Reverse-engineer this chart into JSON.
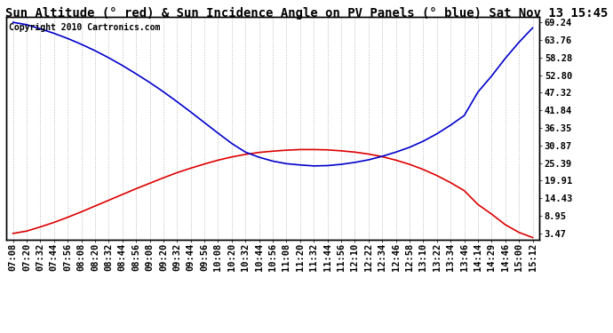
{
  "title": "Sun Altitude (° red) & Sun Incidence Angle on PV Panels (° blue) Sat Nov 13 15:45",
  "copyright": "Copyright 2010 Cartronics.com",
  "background_color": "#ffffff",
  "plot_bg_color": "#ffffff",
  "yticks": [
    3.47,
    8.95,
    14.43,
    19.91,
    25.39,
    30.87,
    36.35,
    41.84,
    47.32,
    52.8,
    58.28,
    63.76,
    69.24
  ],
  "ylim": [
    1.5,
    71.0
  ],
  "time_labels": [
    "07:08",
    "07:20",
    "07:32",
    "07:44",
    "07:56",
    "08:08",
    "08:20",
    "08:32",
    "08:44",
    "08:56",
    "09:08",
    "09:20",
    "09:32",
    "09:44",
    "09:56",
    "10:08",
    "10:20",
    "10:32",
    "10:44",
    "10:56",
    "11:08",
    "11:20",
    "11:32",
    "11:44",
    "11:56",
    "12:10",
    "12:22",
    "12:34",
    "12:46",
    "12:58",
    "13:10",
    "13:22",
    "13:34",
    "13:46",
    "14:14",
    "14:29",
    "14:46",
    "15:00",
    "15:12"
  ],
  "red_curve": [
    3.47,
    4.2,
    5.5,
    6.9,
    8.5,
    10.2,
    12.0,
    13.8,
    15.6,
    17.4,
    19.1,
    20.8,
    22.4,
    23.8,
    25.1,
    26.3,
    27.3,
    28.1,
    28.7,
    29.1,
    29.4,
    29.6,
    29.6,
    29.5,
    29.2,
    28.8,
    28.2,
    27.4,
    26.3,
    25.0,
    23.4,
    21.5,
    19.3,
    16.8,
    12.5,
    9.5,
    6.2,
    3.8,
    2.2
  ],
  "blue_curve": [
    69.24,
    68.5,
    67.2,
    65.8,
    64.2,
    62.4,
    60.4,
    58.2,
    55.8,
    53.2,
    50.5,
    47.6,
    44.5,
    41.3,
    38.0,
    34.7,
    31.5,
    28.8,
    27.2,
    26.0,
    25.2,
    24.8,
    24.5,
    24.6,
    25.0,
    25.6,
    26.4,
    27.5,
    28.8,
    30.3,
    32.2,
    34.5,
    37.2,
    40.2,
    47.5,
    52.5,
    58.0,
    63.0,
    67.5
  ],
  "line_color_red": "#dd0000",
  "line_color_blue": "#0000cc",
  "grid_color": "#aaaaaa",
  "grid_linestyle": ":",
  "title_fontsize": 10,
  "tick_fontsize": 7.5,
  "copyright_fontsize": 7
}
